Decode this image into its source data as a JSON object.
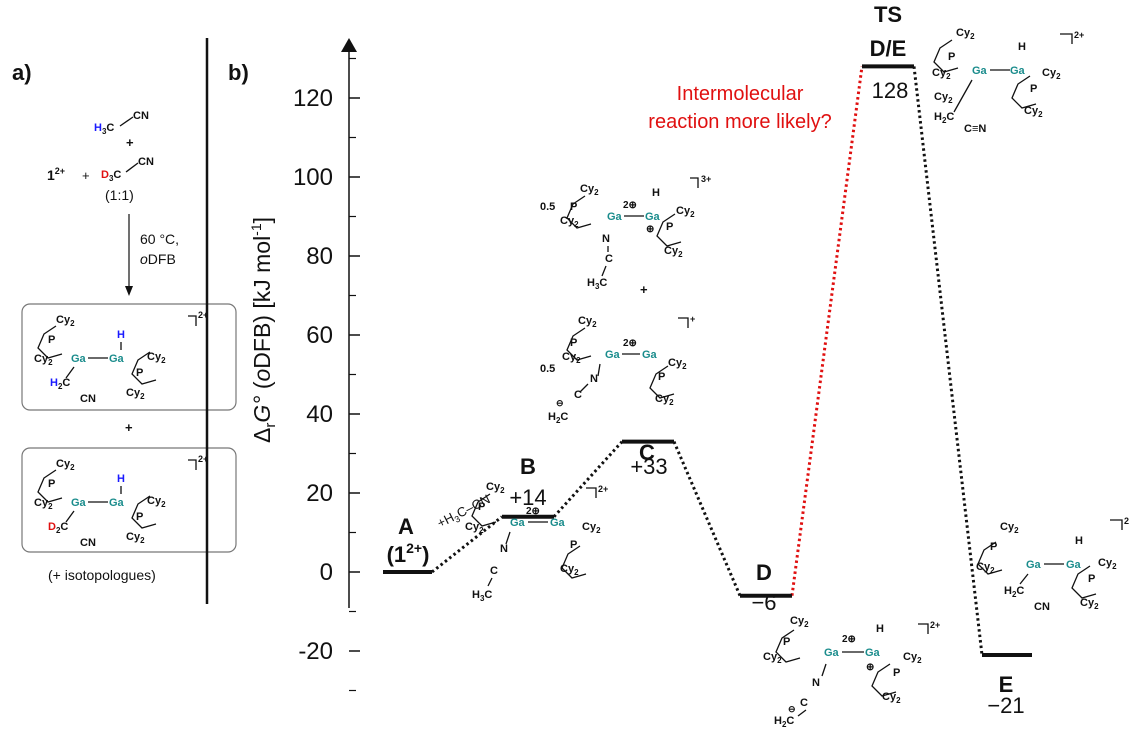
{
  "panel_a": {
    "label": "a)",
    "reactant_1": "1",
    "reactant_1_charge": "2+",
    "plus_sign": "+",
    "h3c": "H",
    "h3c_sub": "3",
    "h3c_c": "C",
    "cn1": "CN",
    "d3c": "D",
    "d3c_sub": "3",
    "d3c_c": "C",
    "cn2": "CN",
    "ratio": "(1:1)",
    "condition_temp": "60 °C,",
    "condition_solvent_o": "o",
    "condition_solvent": "DFB",
    "product_plus": "+",
    "isotopologues": "(+ isotopologues)"
  },
  "panel_b": {
    "label": "b)",
    "y_axis_label_delta": "Δ",
    "y_axis_label_r": "r",
    "y_axis_label_G": "G°",
    "y_axis_label_paren": " (",
    "y_axis_label_o": "o",
    "y_axis_label_rest": "DFB) [kJ mol",
    "y_axis_label_exp": "-1",
    "y_axis_label_close": "]",
    "annotation_line1": "Intermolecular",
    "annotation_line2": "reaction more likely?",
    "arrow_label_A": "+H",
    "arrow_label_sub": "3",
    "arrow_label_rest": "C–CN",
    "ts_label": "TS",
    "coef_05a": "0.5",
    "coef_05b": "0.5",
    "plus_between": "+"
  },
  "colors": {
    "gallium": "#1a8c8c",
    "hydrogen_label": "#1a1aff",
    "deuterium_label": "#e01010",
    "red_path": "#e01010",
    "black_path": "#111111"
  },
  "chart_data": {
    "type": "energy_profile",
    "ylabel": "ΔrG° (oDFB) [kJ mol-1]",
    "ylim": [
      -30,
      135
    ],
    "yticks": [
      -20,
      0,
      20,
      40,
      60,
      80,
      100,
      120
    ],
    "ytick_labels": [
      "-20",
      "0",
      "20",
      "40",
      "60",
      "80",
      "100",
      "120"
    ],
    "levels": [
      {
        "id": "A",
        "name": "A",
        "sub": "(1",
        "sub_sup": "2+",
        "sub_close": ")",
        "value": 0,
        "value_label": ""
      },
      {
        "id": "B",
        "name": "B",
        "value": 14,
        "value_label": "+14"
      },
      {
        "id": "C",
        "name": "C",
        "value": 33,
        "value_label": "+33"
      },
      {
        "id": "D",
        "name": "D",
        "value": -6,
        "value_label": "−6"
      },
      {
        "id": "TS",
        "name": "D/E",
        "value": 128,
        "value_label": "128"
      },
      {
        "id": "E",
        "name": "E",
        "value": -21,
        "value_label": "−21"
      }
    ],
    "connections": [
      {
        "from": "A",
        "to": "B",
        "color": "black",
        "style": "dotted"
      },
      {
        "from": "B",
        "to": "C",
        "color": "black",
        "style": "dotted"
      },
      {
        "from": "C",
        "to": "D",
        "color": "black",
        "style": "dotted"
      },
      {
        "from": "D",
        "to": "TS",
        "color": "red",
        "style": "dotted"
      },
      {
        "from": "TS",
        "to": "E",
        "color": "black",
        "style": "dotted"
      }
    ]
  }
}
